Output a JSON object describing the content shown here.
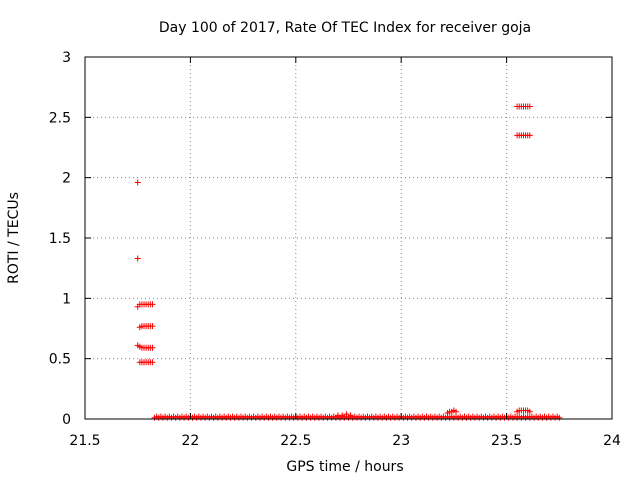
{
  "chart_data": {
    "type": "scatter",
    "title": "Day 100 of 2017, Rate Of TEC Index for receiver goja",
    "xlabel": "GPS time / hours",
    "ylabel": "ROTI / TECUs",
    "xlim": [
      21.5,
      24
    ],
    "ylim": [
      0,
      3
    ],
    "xticks": [
      21.5,
      22,
      22.5,
      23,
      23.5,
      24
    ],
    "xtick_labels": [
      "21.5",
      "22",
      "22.5",
      "23",
      "23.5",
      "24"
    ],
    "yticks": [
      0,
      0.5,
      1,
      1.5,
      2,
      2.5,
      3
    ],
    "ytick_labels": [
      "0",
      "0.5",
      "1",
      "1.5",
      "2",
      "2.5",
      "3"
    ],
    "grid": true,
    "marker": "+",
    "series": [
      {
        "name": "ROTI",
        "color": "#ff0000",
        "points": [
          [
            21.75,
            1.96
          ],
          [
            21.75,
            1.33
          ],
          [
            21.75,
            0.93
          ],
          [
            21.76,
            0.95
          ],
          [
            21.77,
            0.95
          ],
          [
            21.78,
            0.95
          ],
          [
            21.79,
            0.95
          ],
          [
            21.8,
            0.95
          ],
          [
            21.81,
            0.95
          ],
          [
            21.82,
            0.95
          ],
          [
            21.76,
            0.76
          ],
          [
            21.77,
            0.77
          ],
          [
            21.78,
            0.77
          ],
          [
            21.79,
            0.77
          ],
          [
            21.8,
            0.77
          ],
          [
            21.81,
            0.77
          ],
          [
            21.82,
            0.77
          ],
          [
            21.75,
            0.61
          ],
          [
            21.76,
            0.6
          ],
          [
            21.77,
            0.59
          ],
          [
            21.78,
            0.59
          ],
          [
            21.79,
            0.59
          ],
          [
            21.8,
            0.59
          ],
          [
            21.81,
            0.59
          ],
          [
            21.82,
            0.59
          ],
          [
            21.76,
            0.47
          ],
          [
            21.77,
            0.47
          ],
          [
            21.78,
            0.47
          ],
          [
            21.79,
            0.47
          ],
          [
            21.8,
            0.47
          ],
          [
            21.81,
            0.47
          ],
          [
            21.82,
            0.47
          ],
          [
            23.55,
            2.59
          ],
          [
            23.56,
            2.59
          ],
          [
            23.57,
            2.59
          ],
          [
            23.58,
            2.59
          ],
          [
            23.59,
            2.59
          ],
          [
            23.6,
            2.59
          ],
          [
            23.61,
            2.59
          ],
          [
            23.55,
            2.35
          ],
          [
            23.56,
            2.35
          ],
          [
            23.57,
            2.35
          ],
          [
            23.58,
            2.35
          ],
          [
            23.59,
            2.35
          ],
          [
            23.6,
            2.35
          ],
          [
            23.61,
            2.35
          ],
          [
            23.22,
            0.05
          ],
          [
            23.23,
            0.06
          ],
          [
            23.24,
            0.06
          ],
          [
            23.25,
            0.07
          ],
          [
            23.26,
            0.06
          ],
          [
            23.55,
            0.06
          ],
          [
            23.56,
            0.07
          ],
          [
            23.57,
            0.07
          ],
          [
            23.58,
            0.07
          ],
          [
            23.59,
            0.07
          ],
          [
            23.6,
            0.07
          ],
          [
            23.61,
            0.06
          ],
          [
            22.7,
            0.03
          ],
          [
            22.72,
            0.03
          ],
          [
            22.74,
            0.04
          ],
          [
            22.76,
            0.03
          ]
        ],
        "baseline": {
          "x_start": 21.83,
          "x_end": 23.75,
          "step": 0.01,
          "y_low": 0.01,
          "y_high": 0.02
        }
      }
    ]
  }
}
